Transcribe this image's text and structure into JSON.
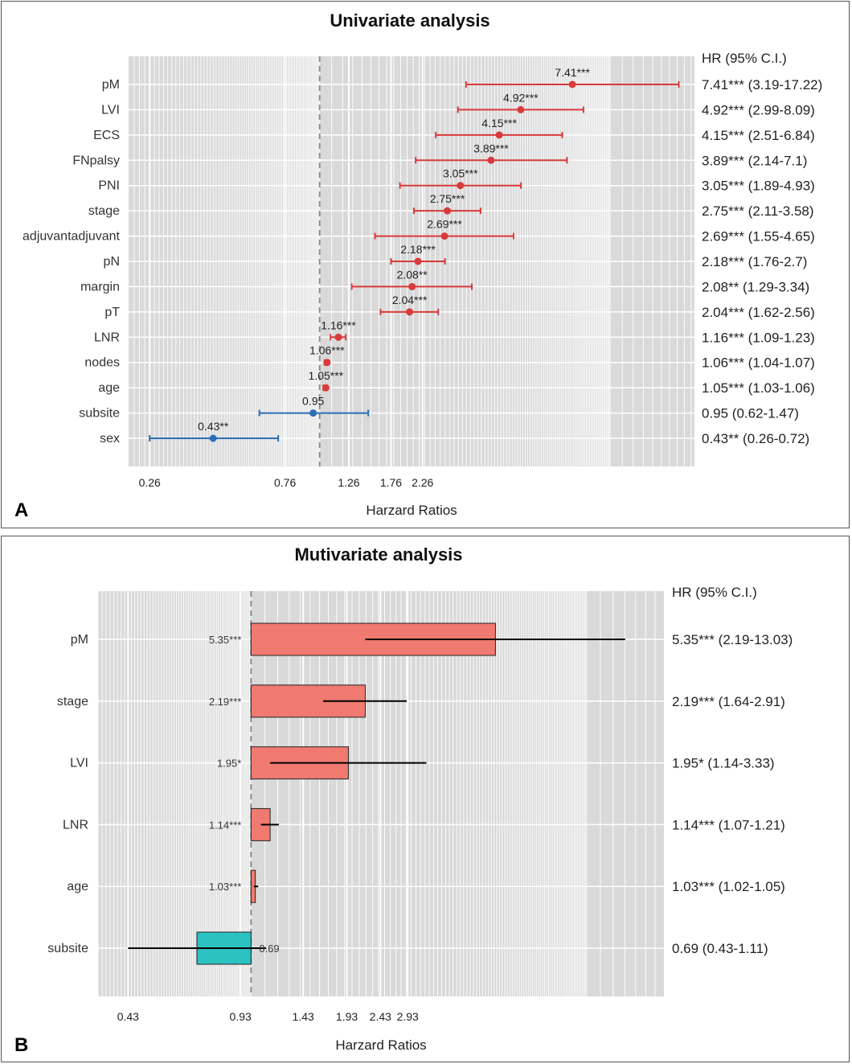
{
  "chart_data": [
    {
      "type": "forest",
      "panel_letter": "A",
      "title": "Univariate analysis",
      "xlabel": "Harzard Ratios",
      "hr_header": "HR (95% C.I.)",
      "reference_line": 1.0,
      "xlim": [
        0.22,
        19.5
      ],
      "x_ticks": [
        {
          "value": 0.26,
          "label": "0.26"
        },
        {
          "value": 0.76,
          "label": "0.76"
        },
        {
          "value": 1.26,
          "label": "1.26"
        },
        {
          "value": 1.76,
          "label": "1.76"
        },
        {
          "value": 2.26,
          "label": "2.26"
        }
      ],
      "rows": [
        {
          "name": "pM",
          "hr": 7.41,
          "lo": 3.19,
          "hi": 17.22,
          "label": "7.41***",
          "ci_text": "7.41*** (3.19-17.22)",
          "color": "#d93a3a"
        },
        {
          "name": "LVI",
          "hr": 4.92,
          "lo": 2.99,
          "hi": 8.09,
          "label": "4.92***",
          "ci_text": "4.92*** (2.99-8.09)",
          "color": "#d93a3a"
        },
        {
          "name": "ECS",
          "hr": 4.15,
          "lo": 2.51,
          "hi": 6.84,
          "label": "4.15***",
          "ci_text": "4.15*** (2.51-6.84)",
          "color": "#d93a3a"
        },
        {
          "name": "FNpalsy",
          "hr": 3.89,
          "lo": 2.14,
          "hi": 7.1,
          "label": "3.89***",
          "ci_text": "3.89*** (2.14-7.1)",
          "color": "#d93a3a"
        },
        {
          "name": "PNI",
          "hr": 3.05,
          "lo": 1.89,
          "hi": 4.93,
          "label": "3.05***",
          "ci_text": "3.05*** (1.89-4.93)",
          "color": "#d93a3a"
        },
        {
          "name": "stage",
          "hr": 2.75,
          "lo": 2.11,
          "hi": 3.58,
          "label": "2.75***",
          "ci_text": "2.75*** (2.11-3.58)",
          "color": "#d93a3a"
        },
        {
          "name": "adjuvantadjuvant",
          "hr": 2.69,
          "lo": 1.55,
          "hi": 4.65,
          "label": "2.69***",
          "ci_text": "2.69*** (1.55-4.65)",
          "color": "#d93a3a"
        },
        {
          "name": "pN",
          "hr": 2.18,
          "lo": 1.76,
          "hi": 2.7,
          "label": "2.18***",
          "ci_text": "2.18*** (1.76-2.7)",
          "color": "#d93a3a"
        },
        {
          "name": "margin",
          "hr": 2.08,
          "lo": 1.29,
          "hi": 3.34,
          "label": "2.08**",
          "ci_text": "2.08** (1.29-3.34)",
          "color": "#d93a3a"
        },
        {
          "name": "pT",
          "hr": 2.04,
          "lo": 1.62,
          "hi": 2.56,
          "label": "2.04***",
          "ci_text": "2.04*** (1.62-2.56)",
          "color": "#d93a3a"
        },
        {
          "name": "LNR",
          "hr": 1.16,
          "lo": 1.09,
          "hi": 1.23,
          "label": "1.16***",
          "ci_text": "1.16*** (1.09-1.23)",
          "color": "#d93a3a"
        },
        {
          "name": "nodes",
          "hr": 1.06,
          "lo": 1.04,
          "hi": 1.07,
          "label": "1.06***",
          "ci_text": "1.06*** (1.04-1.07)",
          "color": "#d93a3a"
        },
        {
          "name": "age",
          "hr": 1.05,
          "lo": 1.03,
          "hi": 1.06,
          "label": "1.05***",
          "ci_text": "1.05*** (1.03-1.06)",
          "color": "#d93a3a"
        },
        {
          "name": "subsite",
          "hr": 0.95,
          "lo": 0.62,
          "hi": 1.47,
          "label": "0.95",
          "ci_text": "0.95 (0.62-1.47)",
          "color": "#2a6fb8"
        },
        {
          "name": "sex",
          "hr": 0.43,
          "lo": 0.26,
          "hi": 0.72,
          "label": "0.43**",
          "ci_text": "0.43** (0.26-0.72)",
          "color": "#2a6fb8"
        }
      ]
    },
    {
      "type": "bar",
      "panel_letter": "B",
      "title": "Mutivariate analysis",
      "xlabel": "Harzard Ratios",
      "hr_header": "HR (95% C.I.)",
      "reference_line": 1.0,
      "xlim": [
        0.35,
        17.0
      ],
      "x_ticks": [
        {
          "value": 0.43,
          "label": "0.43"
        },
        {
          "value": 0.93,
          "label": "0.93"
        },
        {
          "value": 1.43,
          "label": "1.43"
        },
        {
          "value": 1.93,
          "label": "1.93"
        },
        {
          "value": 2.43,
          "label": "2.43"
        },
        {
          "value": 2.93,
          "label": "2.93"
        }
      ],
      "rows": [
        {
          "name": "pM",
          "hr": 5.35,
          "lo": 2.19,
          "hi": 13.03,
          "label": "5.35***",
          "ci_text": "5.35*** (2.19-13.03)",
          "color": "#f07a70"
        },
        {
          "name": "stage",
          "hr": 2.19,
          "lo": 1.64,
          "hi": 2.91,
          "label": "2.19***",
          "ci_text": "2.19*** (1.64-2.91)",
          "color": "#f07a70"
        },
        {
          "name": "LVI",
          "hr": 1.95,
          "lo": 1.14,
          "hi": 3.33,
          "label": "1.95*",
          "ci_text": "1.95* (1.14-3.33)",
          "color": "#f07a70"
        },
        {
          "name": "LNR",
          "hr": 1.14,
          "lo": 1.07,
          "hi": 1.21,
          "label": "1.14***",
          "ci_text": "1.14*** (1.07-1.21)",
          "color": "#f07a70"
        },
        {
          "name": "age",
          "hr": 1.03,
          "lo": 1.02,
          "hi": 1.05,
          "label": "1.03***",
          "ci_text": "1.03*** (1.02-1.05)",
          "color": "#f07a70"
        },
        {
          "name": "subsite",
          "hr": 0.69,
          "lo": 0.43,
          "hi": 1.11,
          "label": "0.69",
          "ci_text": "0.69 (0.43-1.11)",
          "color": "#2cc2c2"
        }
      ]
    }
  ]
}
